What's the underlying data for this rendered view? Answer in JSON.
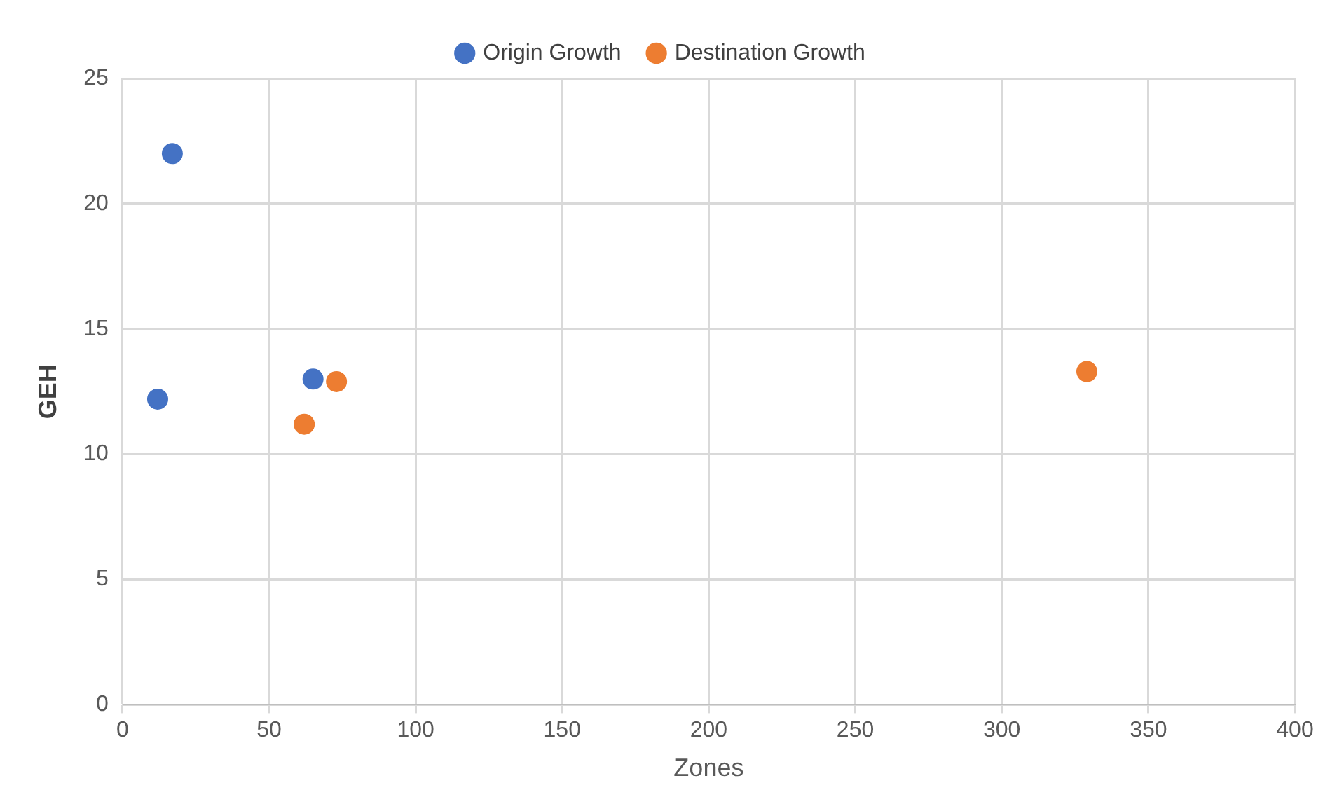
{
  "chart_data": {
    "type": "scatter",
    "xlabel": "Zones",
    "ylabel": "GEH",
    "xlim": [
      0,
      400
    ],
    "xticks": [
      0,
      50,
      100,
      150,
      200,
      250,
      300,
      350,
      400
    ],
    "ylim": [
      0,
      25
    ],
    "yticks": [
      0,
      5,
      10,
      15,
      20,
      25
    ],
    "grid": true,
    "legend": "top",
    "marker": "circle",
    "series": [
      {
        "name": "Origin Growth",
        "color": "#4472c4",
        "x": [
          17,
          12,
          65
        ],
        "values": [
          22,
          12.2,
          13
        ]
      },
      {
        "name": "Destination Growth",
        "color": "#ed7d31",
        "x": [
          62,
          73,
          329
        ],
        "values": [
          11.2,
          12.9,
          13.3
        ]
      }
    ]
  }
}
